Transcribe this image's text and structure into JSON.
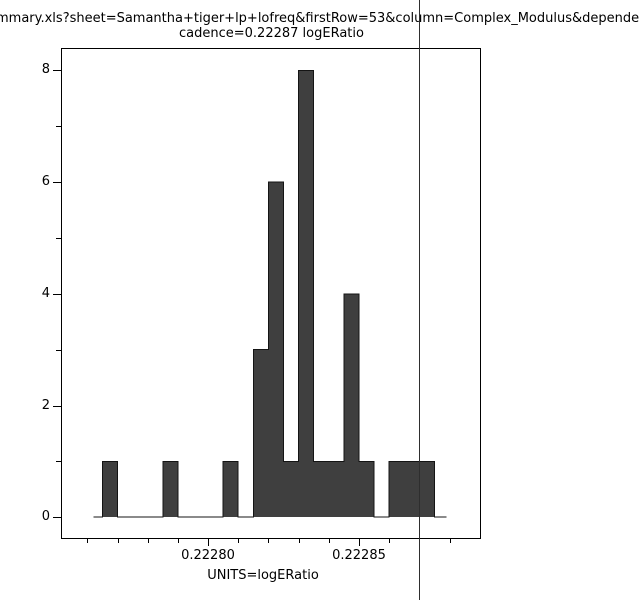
{
  "title": {
    "line1": "mmary.xls?sheet=Samantha+tiger+lp+lofreq&firstRow=53&column=Complex_Modulus&depende",
    "line2": "cadence=0.22287 logERatio"
  },
  "chart_data": {
    "type": "bar",
    "subtype": "histogram",
    "title": "cadence=0.22287 logERatio",
    "xlabel": "UNITS=logERatio",
    "ylabel": "",
    "bin_start": 0.222765,
    "bin_width": 5e-06,
    "counts": [
      1,
      0,
      0,
      0,
      1,
      0,
      0,
      0,
      1,
      0,
      3,
      6,
      1,
      8,
      1,
      1,
      4,
      1,
      0,
      1,
      1,
      1
    ],
    "total_count": 31,
    "xlim": [
      0.2227513,
      0.2228904
    ],
    "ylim": [
      -0.39,
      8.4
    ],
    "baseline_range": [
      0.222762,
      0.222879
    ],
    "xticks_major": [
      {
        "value": 0.2228,
        "label": "0.22280"
      },
      {
        "value": 0.22285,
        "label": "0.22285"
      }
    ],
    "xticks_minor": [
      0.22276,
      0.22277,
      0.22278,
      0.22279,
      0.22281,
      0.22282,
      0.22283,
      0.22284,
      0.22286,
      0.22287,
      0.22288
    ],
    "yticks_major": [
      {
        "value": 0,
        "label": "0"
      },
      {
        "value": 2,
        "label": "2"
      },
      {
        "value": 4,
        "label": "4"
      },
      {
        "value": 6,
        "label": "6"
      },
      {
        "value": 8,
        "label": "8"
      }
    ],
    "yticks_minor": [
      1,
      3,
      5,
      7
    ],
    "vline": {
      "value": 0.22287
    },
    "grid": false,
    "legend": null,
    "colors": {
      "bar_fill": "#3f3f3f",
      "bar_stroke": "#141414",
      "axis": "#000000",
      "vline": "#2e2e2e"
    }
  }
}
